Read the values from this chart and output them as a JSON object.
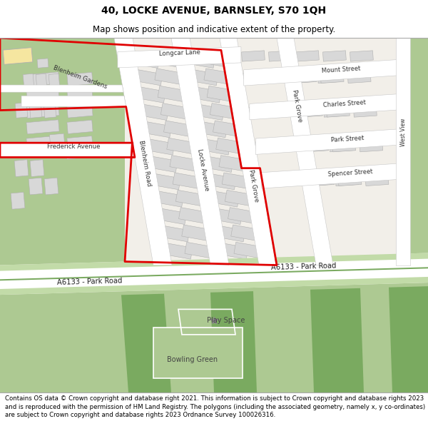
{
  "title": "40, LOCKE AVENUE, BARNSLEY, S70 1QH",
  "subtitle": "Map shows position and indicative extent of the property.",
  "footer": "Contains OS data © Crown copyright and database right 2021. This information is subject to Crown copyright and database rights 2023 and is reproduced with the permission of HM Land Registry. The polygons (including the associated geometry, namely x, y co-ordinates) are subject to Crown copyright and database rights 2023 Ordnance Survey 100026316.",
  "map_bg": "#f2efe9",
  "road_white": "#ffffff",
  "road_outline": "#c8c8c8",
  "green_light": "#adc992",
  "green_dark": "#7aaa60",
  "green_mid": "#93bb7a",
  "red_color": "#e00000",
  "bldg_fill": "#d8d8d8",
  "bldg_edge": "#b0b0b0",
  "yellow_bldg": "#f5e6a0",
  "road_green_bg": "#c2dba8",
  "title_fontsize": 10,
  "subtitle_fontsize": 8.5,
  "footer_fontsize": 6.2
}
